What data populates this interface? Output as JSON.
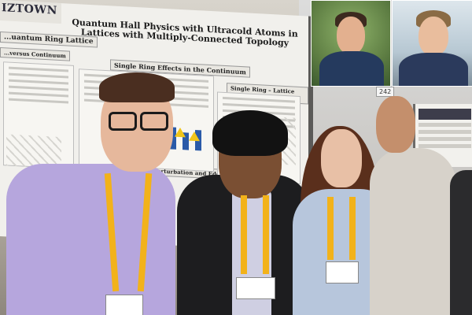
{
  "photo": {
    "alt_summary": ""
  },
  "poster": {
    "logo_text": "IZTOWN",
    "title": "Quantum Hall Physics with Ultracold Atoms in Lattices with Multiply-Connected Topology",
    "section_left": "...uantum Ring Lattice",
    "section_left_2": "...versus Continuum",
    "section_mid": "Single Ring Effects in the Continuum",
    "section_right": "Single Ring – Lattice Effects",
    "section_lower": "Perturbation and Edge States",
    "colors": {
      "accent_blue": "#2a5aa8",
      "accent_yellow": "#f0c419"
    }
  },
  "booth": {
    "number": "242"
  },
  "inset_photos": {
    "count": 2,
    "colors": {
      "left_bg": "#6a8e4e",
      "right_bg": "#c3d1da"
    }
  },
  "people": {
    "count": 4,
    "lanyard_color": "#f2b21a"
  }
}
